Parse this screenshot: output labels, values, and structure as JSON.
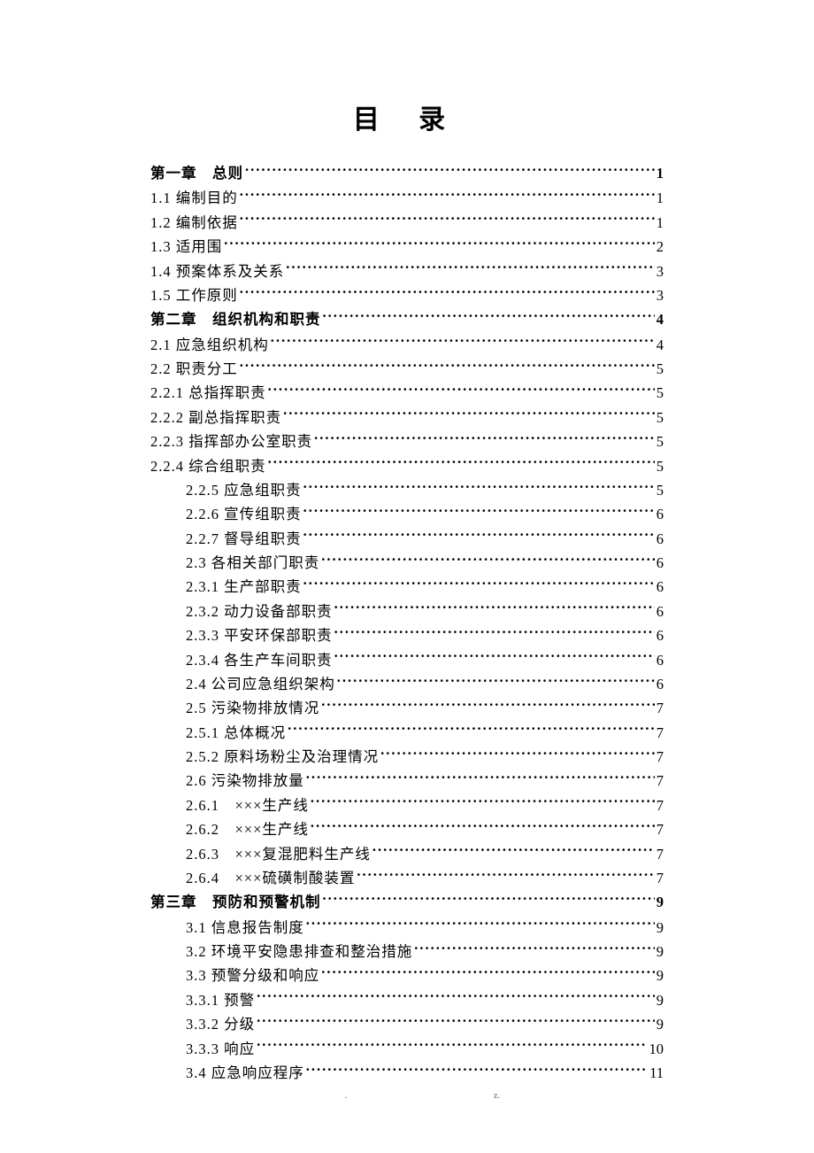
{
  "title": "目 录",
  "text_color": "#000000",
  "background_color": "#ffffff",
  "font_size_title": 30,
  "font_size_body": 16.5,
  "line_height": 1.66,
  "entries": [
    {
      "label": "第一章　总则",
      "page": "1",
      "bold": true,
      "indent": 0
    },
    {
      "label": "1.1 编制目的",
      "page": "1",
      "bold": false,
      "indent": 0
    },
    {
      "label": "1.2 编制依据",
      "page": "1",
      "bold": false,
      "indent": 0
    },
    {
      "label": "1.3 适用围",
      "page": "2",
      "bold": false,
      "indent": 0
    },
    {
      "label": "1.4 预案体系及关系",
      "page": "3",
      "bold": false,
      "indent": 0
    },
    {
      "label": "1.5 工作原则",
      "page": "3",
      "bold": false,
      "indent": 0
    },
    {
      "label": "第二章　组织机构和职责",
      "page": "4",
      "bold": true,
      "indent": 0
    },
    {
      "label": "2.1 应急组织机构",
      "page": "4",
      "bold": false,
      "indent": 0
    },
    {
      "label": "2.2 职责分工",
      "page": "5",
      "bold": false,
      "indent": 0
    },
    {
      "label": "2.2.1 总指挥职责",
      "page": "5",
      "bold": false,
      "indent": 0
    },
    {
      "label": "2.2.2 副总指挥职责",
      "page": "5",
      "bold": false,
      "indent": 0
    },
    {
      "label": "2.2.3 指挥部办公室职责",
      "page": "5",
      "bold": false,
      "indent": 0
    },
    {
      "label": "2.2.4 综合组职责",
      "page": "5",
      "bold": false,
      "indent": 0
    },
    {
      "label": "2.2.5 应急组职责",
      "page": "5",
      "bold": false,
      "indent": 1
    },
    {
      "label": "2.2.6 宣传组职责",
      "page": "6",
      "bold": false,
      "indent": 1
    },
    {
      "label": "2.2.7 督导组职责",
      "page": "6",
      "bold": false,
      "indent": 1
    },
    {
      "label": "2.3 各相关部门职责",
      "page": "6",
      "bold": false,
      "indent": 1
    },
    {
      "label": "2.3.1 生产部职责",
      "page": "6",
      "bold": false,
      "indent": 1
    },
    {
      "label": "2.3.2 动力设备部职责",
      "page": "6",
      "bold": false,
      "indent": 1
    },
    {
      "label": "2.3.3 平安环保部职责",
      "page": "6",
      "bold": false,
      "indent": 1
    },
    {
      "label": "2.3.4 各生产车间职责",
      "page": "6",
      "bold": false,
      "indent": 1
    },
    {
      "label": "2.4  公司应急组织架构",
      "page": "6",
      "bold": false,
      "indent": 1
    },
    {
      "label": "2.5 污染物排放情况",
      "page": "7",
      "bold": false,
      "indent": 1
    },
    {
      "label": "2.5.1 总体概况",
      "page": "7",
      "bold": false,
      "indent": 1
    },
    {
      "label": "2.5.2 原料场粉尘及治理情况",
      "page": "7",
      "bold": false,
      "indent": 1
    },
    {
      "label": "2.6 污染物排放量",
      "page": "7",
      "bold": false,
      "indent": 1
    },
    {
      "label": "2.6.1　×××生产线",
      "page": "7",
      "bold": false,
      "indent": 1
    },
    {
      "label": "2.6.2　×××生产线",
      "page": "7",
      "bold": false,
      "indent": 1
    },
    {
      "label": "2.6.3　×××复混肥料生产线",
      "page": "7",
      "bold": false,
      "indent": 1
    },
    {
      "label": "2.6.4　×××硫磺制酸装置 ",
      "page": "7",
      "bold": false,
      "indent": 1
    },
    {
      "label": "第三章　预防和预警机制",
      "page": "9",
      "bold": true,
      "indent": 0
    },
    {
      "label": "3.1 信息报告制度",
      "page": "9",
      "bold": false,
      "indent": 1
    },
    {
      "label": "3.2 环境平安隐患排查和整治措施",
      "page": "9",
      "bold": false,
      "indent": 1
    },
    {
      "label": "3.3 预警分级和响应",
      "page": "9",
      "bold": false,
      "indent": 1
    },
    {
      "label": "3.3.1 预警",
      "page": "9",
      "bold": false,
      "indent": 1
    },
    {
      "label": "3.3.2 分级",
      "page": "9",
      "bold": false,
      "indent": 1
    },
    {
      "label": "3.3.3 响应",
      "page": "10",
      "bold": false,
      "indent": 1
    },
    {
      "label": "3.4 应急响应程序",
      "page": "11",
      "bold": false,
      "indent": 1
    }
  ],
  "footer_left": ".",
  "footer_right": "z."
}
